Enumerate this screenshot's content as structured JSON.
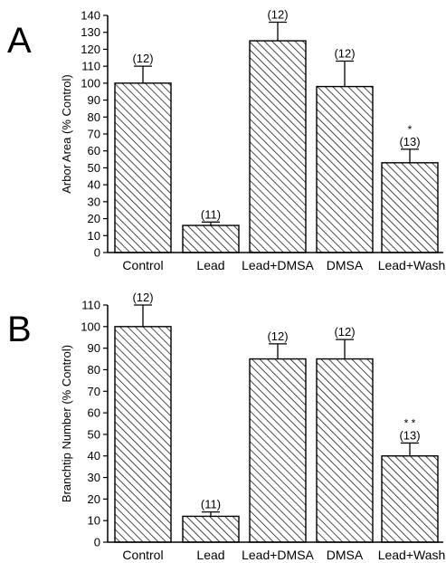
{
  "chart_data": [
    {
      "panel": "A",
      "type": "bar",
      "ylabel": "Arbor Area (% Control)",
      "ylim": [
        0,
        140
      ],
      "yticks": [
        0,
        10,
        20,
        30,
        40,
        50,
        60,
        70,
        80,
        90,
        100,
        110,
        120,
        130,
        140
      ],
      "categories": [
        "Control",
        "Lead",
        "Lead+DMSA",
        "DMSA",
        "Lead+Wash"
      ],
      "values": [
        100,
        16,
        125,
        98,
        53
      ],
      "errors": [
        10,
        2,
        11,
        15,
        8
      ],
      "n_labels": [
        "(12)",
        "(11)",
        "(12)",
        "(12)",
        "(13)"
      ],
      "sig_labels": [
        "",
        "",
        "",
        "",
        "*"
      ]
    },
    {
      "panel": "B",
      "type": "bar",
      "ylabel": "Branchtip Number (% Control)",
      "ylim": [
        0,
        110
      ],
      "yticks": [
        0,
        10,
        20,
        30,
        40,
        50,
        60,
        70,
        80,
        90,
        100,
        110
      ],
      "categories": [
        "Control",
        "Lead",
        "Lead+DMSA",
        "DMSA",
        "Lead+Wash"
      ],
      "values": [
        100,
        12,
        85,
        85,
        40
      ],
      "errors": [
        10,
        2,
        7,
        9,
        6
      ],
      "n_labels": [
        "(12)",
        "(11)",
        "(12)",
        "(12)",
        "(13)"
      ],
      "sig_labels": [
        "",
        "",
        "",
        "",
        "**"
      ]
    }
  ]
}
